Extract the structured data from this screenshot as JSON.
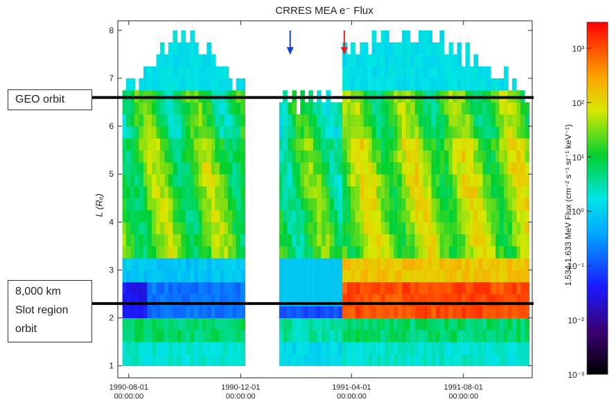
{
  "chart_data": {
    "type": "heatmap",
    "title": "CRRES MEA e⁻ Flux",
    "ylabel": "L (Rₑ)",
    "ylim": [
      0.75,
      8.2
    ],
    "y_ticks": [
      "1",
      "2",
      "3",
      "4",
      "5",
      "6",
      "7",
      "8"
    ],
    "x_ticks": [
      {
        "date": "1990-08-01",
        "time": "00:00:00"
      },
      {
        "date": "1990-12-01",
        "time": "00:00:00"
      },
      {
        "date": "1991-04-01",
        "time": "00:00:00"
      },
      {
        "date": "1991-08-01",
        "time": "00:00:00"
      }
    ],
    "xlim": [
      "1990-07-20",
      "1991-10-15"
    ],
    "data_gap": [
      "1990-12-10",
      "1991-01-12"
    ],
    "colorbar": {
      "label": "1.534-1.633 MeV Flux (cm⁻² s⁻¹ sr⁻¹ keV⁻¹)",
      "scale": "log",
      "range": [
        0.001,
        3000
      ],
      "tick_labels": [
        "10³",
        "10²",
        "10¹",
        "10⁰",
        "10⁻¹",
        "10⁻²",
        "10⁻³"
      ]
    },
    "reference_lines": [
      {
        "label": "GEO orbit",
        "L": 6.6
      },
      {
        "label_lines": [
          "8,000 km",
          "Slot region",
          "orbit"
        ],
        "L": 2.3
      }
    ],
    "event_markers": [
      {
        "date": "1991-01-24",
        "color": "#1a3fd0"
      },
      {
        "date": "1991-03-24",
        "color": "#e02020"
      }
    ]
  }
}
